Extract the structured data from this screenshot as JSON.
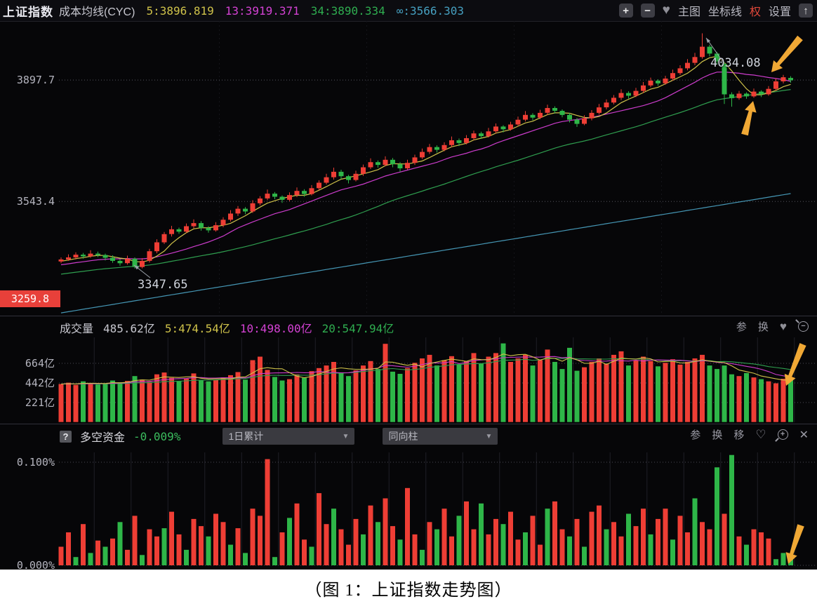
{
  "header": {
    "title": "上证指数",
    "indicator": "成本均线(CYC)",
    "cyc": [
      "5:3896.819",
      "13:3919.371",
      "34:3890.334",
      "∞:3566.303"
    ],
    "toolbar": {
      "zoom_in": "+",
      "zoom_out": "−",
      "favorite": "♥",
      "share": "↑",
      "menu": [
        "主图",
        "坐标线",
        "权",
        "设置"
      ]
    }
  },
  "main_chart": {
    "y_axis_labels": [
      "3897.7",
      "3543.4",
      "3259.8"
    ],
    "annotations": {
      "peak": "4034.08",
      "low": "3347.65"
    }
  },
  "volume_panel": {
    "title": "成交量",
    "current": "485.62亿",
    "ma_values": [
      "5:474.54亿",
      "10:498.00亿",
      "20:547.94亿"
    ],
    "y_axis_labels": [
      "664亿",
      "442亿",
      "221亿"
    ],
    "tools": [
      "参",
      "换"
    ],
    "favorite": "♥"
  },
  "fund_panel": {
    "help": "?",
    "title": "多空资金",
    "current": "-0.009%",
    "dropdown_period": "1日累计",
    "dropdown_style": "同向柱",
    "y_axis_labels": [
      "0.100%",
      "0.000%"
    ],
    "tools": [
      "参",
      "换",
      "移"
    ],
    "favorite": "♡",
    "close": "✕"
  },
  "caption": "（图 1：上证指数走势图）",
  "colors": {
    "up": "#ee3e35",
    "down": "#2eb648",
    "ma5": "#cfc24a",
    "ma13": "#cc3ccc",
    "ma34": "#2f9e4f",
    "ma_inf": "#4596b4",
    "grid": "#55555e",
    "grid_minor": "#1f1f26",
    "arrow": "#f0a835",
    "pointer": "#9aa0a8"
  },
  "chart_data": [
    {
      "type": "candlestick",
      "title": "上证指数 日K",
      "ylim": [
        3210,
        4070
      ],
      "y_ticks": [
        3897.7,
        3543.4,
        3259.8
      ],
      "open": [
        3368,
        3374,
        3380,
        3388,
        3383,
        3391,
        3387,
        3379,
        3370,
        3363,
        3376,
        3352,
        3370,
        3398,
        3424,
        3448,
        3462,
        3455,
        3471,
        3480,
        3466,
        3459,
        3474,
        3490,
        3508,
        3522,
        3514,
        3538,
        3552,
        3566,
        3557,
        3548,
        3562,
        3574,
        3565,
        3582,
        3598,
        3614,
        3630,
        3617,
        3606,
        3624,
        3643,
        3658,
        3650,
        3665,
        3652,
        3640,
        3656,
        3672,
        3688,
        3702,
        3694,
        3708,
        3722,
        3714,
        3728,
        3742,
        3734,
        3748,
        3762,
        3754,
        3768,
        3782,
        3796,
        3788,
        3802,
        3816,
        3808,
        3796,
        3782,
        3770,
        3786,
        3802,
        3818,
        3832,
        3846,
        3860,
        3852,
        3866,
        3882,
        3896,
        3888,
        3902,
        3918,
        3932,
        3948,
        3965,
        3995,
        3975,
        3945,
        3856,
        3845,
        3858,
        3850,
        3864,
        3856,
        3872,
        3894,
        3904
      ],
      "close": [
        3374,
        3380,
        3388,
        3383,
        3391,
        3387,
        3379,
        3370,
        3363,
        3376,
        3352,
        3370,
        3398,
        3424,
        3448,
        3462,
        3455,
        3471,
        3480,
        3466,
        3459,
        3474,
        3490,
        3508,
        3522,
        3514,
        3538,
        3552,
        3566,
        3557,
        3548,
        3562,
        3574,
        3565,
        3582,
        3598,
        3614,
        3630,
        3617,
        3606,
        3624,
        3643,
        3658,
        3650,
        3665,
        3652,
        3640,
        3656,
        3672,
        3688,
        3702,
        3694,
        3708,
        3722,
        3714,
        3728,
        3742,
        3734,
        3748,
        3762,
        3754,
        3768,
        3782,
        3796,
        3788,
        3802,
        3816,
        3808,
        3796,
        3782,
        3770,
        3786,
        3802,
        3818,
        3832,
        3846,
        3860,
        3852,
        3866,
        3882,
        3896,
        3888,
        3902,
        3918,
        3932,
        3948,
        3965,
        3995,
        3975,
        3952,
        3856,
        3845,
        3858,
        3850,
        3864,
        3856,
        3872,
        3894,
        3906,
        3897
      ],
      "high": [
        3380,
        3389,
        3395,
        3393,
        3401,
        3397,
        3391,
        3386,
        3375,
        3385,
        3380,
        3378,
        3405,
        3433,
        3454,
        3472,
        3467,
        3479,
        3491,
        3486,
        3471,
        3483,
        3497,
        3518,
        3530,
        3527,
        3547,
        3559,
        3578,
        3571,
        3561,
        3570,
        3584,
        3579,
        3591,
        3605,
        3624,
        3642,
        3636,
        3621,
        3633,
        3651,
        3669,
        3663,
        3675,
        3670,
        3658,
        3665,
        3680,
        3698,
        3711,
        3707,
        3716,
        3733,
        3727,
        3737,
        3750,
        3747,
        3758,
        3771,
        3766,
        3776,
        3791,
        3807,
        3801,
        3811,
        3826,
        3821,
        3812,
        3802,
        3787,
        3795,
        3810,
        3828,
        3841,
        3854,
        3871,
        3865,
        3875,
        3892,
        3905,
        3900,
        3910,
        3928,
        3941,
        3959,
        3977,
        4034.08,
        4001,
        3980,
        3950,
        3862,
        3866,
        3862,
        3873,
        3868,
        3880,
        3903,
        3913,
        3909
      ],
      "low": [
        3363,
        3370,
        3374,
        3376,
        3379,
        3381,
        3371,
        3364,
        3356,
        3359,
        3347.65,
        3348,
        3365,
        3392,
        3419,
        3441,
        3449,
        3451,
        3465,
        3458,
        3452,
        3455,
        3468,
        3485,
        3501,
        3506,
        3510,
        3532,
        3547,
        3550,
        3539,
        3544,
        3556,
        3557,
        3561,
        3576,
        3593,
        3607,
        3608,
        3596,
        3602,
        3618,
        3638,
        3642,
        3646,
        3643,
        3630,
        3636,
        3650,
        3667,
        3682,
        3686,
        3690,
        3702,
        3705,
        3710,
        3722,
        3726,
        3730,
        3742,
        3745,
        3750,
        3762,
        3777,
        3780,
        3784,
        3796,
        3800,
        3789,
        3774,
        3761,
        3766,
        3780,
        3797,
        3812,
        3827,
        3839,
        3844,
        3848,
        3860,
        3877,
        3881,
        3884,
        3896,
        3913,
        3926,
        3941,
        3960,
        3967,
        3943,
        3828,
        3820,
        3840,
        3843,
        3846,
        3848,
        3852,
        3867,
        3888,
        3890
      ],
      "ma_windows": [
        5,
        13,
        34
      ],
      "cyc_inf_start": 3218,
      "cyc_inf_end": 3566.3
    },
    {
      "type": "bar",
      "title": "成交量(亿)",
      "y_ticks": [
        664,
        442,
        221
      ],
      "values": [
        430,
        445,
        420,
        460,
        440,
        425,
        435,
        470,
        450,
        465,
        520,
        480,
        455,
        540,
        560,
        500,
        465,
        490,
        550,
        470,
        460,
        475,
        505,
        530,
        565,
        480,
        700,
        740,
        590,
        510,
        470,
        485,
        540,
        500,
        575,
        610,
        640,
        680,
        560,
        520,
        585,
        640,
        690,
        600,
        885,
        570,
        545,
        610,
        670,
        720,
        760,
        640,
        700,
        745,
        655,
        690,
        780,
        660,
        740,
        780,
        890,
        680,
        720,
        760,
        640,
        700,
        820,
        680,
        600,
        840,
        580,
        620,
        680,
        720,
        660,
        760,
        800,
        640,
        700,
        740,
        690,
        630,
        670,
        710,
        650,
        680,
        720,
        760,
        640,
        600,
        640,
        540,
        520,
        555,
        505,
        485,
        460,
        438,
        490,
        485.62
      ],
      "ma_windows": [
        5,
        10,
        20
      ]
    },
    {
      "type": "bar",
      "title": "多空资金(%)",
      "y_ticks": [
        0.1,
        0.0
      ],
      "values": [
        0.018,
        0.032,
        -0.008,
        0.04,
        -0.012,
        0.024,
        -0.018,
        0.026,
        -0.042,
        0.015,
        0.048,
        -0.01,
        0.035,
        0.028,
        -0.036,
        0.052,
        0.03,
        -0.015,
        0.045,
        0.038,
        -0.028,
        0.05,
        0.042,
        -0.02,
        0.036,
        -0.012,
        0.055,
        0.048,
        0.103,
        -0.008,
        0.032,
        -0.046,
        0.06,
        0.025,
        -0.018,
        0.07,
        0.04,
        -0.055,
        0.035,
        0.02,
        0.045,
        -0.03,
        0.058,
        -0.042,
        0.065,
        0.038,
        -0.025,
        0.075,
        0.03,
        -0.015,
        0.042,
        -0.035,
        0.055,
        0.028,
        -0.048,
        0.062,
        0.035,
        -0.06,
        0.03,
        0.045,
        -0.04,
        0.052,
        0.025,
        -0.032,
        0.048,
        0.02,
        -0.055,
        0.062,
        0.035,
        -0.028,
        0.045,
        -0.018,
        0.052,
        0.058,
        -0.035,
        0.042,
        0.028,
        -0.05,
        0.038,
        0.055,
        -0.03,
        0.045,
        0.055,
        -0.025,
        0.048,
        0.032,
        -0.065,
        0.042,
        0.035,
        -0.095,
        0.05,
        -0.107,
        0.028,
        -0.02,
        0.035,
        0.032,
        0.026,
        -0.006,
        -0.012,
        -0.009
      ]
    }
  ],
  "drawn_arrows": [
    {
      "panel": "main",
      "tail": [
        1140,
        24
      ],
      "tip": [
        1099,
        73
      ]
    },
    {
      "panel": "main",
      "tail": [
        1061,
        162
      ],
      "tip": [
        1073,
        114
      ]
    },
    {
      "panel": "volume",
      "tail": [
        1144,
        40
      ],
      "tip": [
        1120,
        99
      ]
    },
    {
      "panel": "fund",
      "tail": [
        1141,
        144
      ],
      "tip": [
        1123,
        199
      ]
    }
  ],
  "pointers": [
    {
      "from": [
        1030,
        58
      ],
      "to": [
        1006,
        24
      ]
    },
    {
      "from": [
        214,
        366
      ],
      "to": [
        191,
        348
      ]
    }
  ]
}
